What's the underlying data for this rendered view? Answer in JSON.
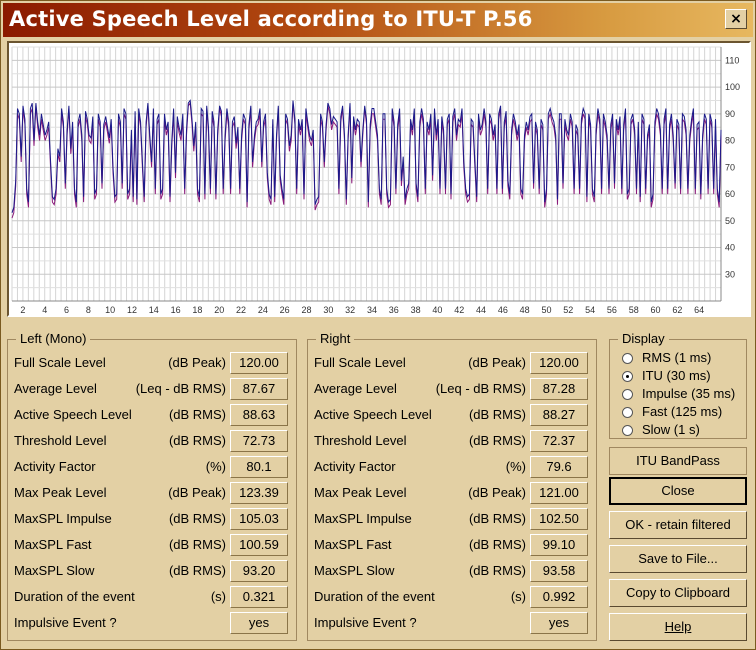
{
  "window": {
    "title": "Active Speech Level according to ITU-T P.56",
    "close_label": "×"
  },
  "chart_data": {
    "type": "line",
    "x_ticks": [
      "2",
      "4",
      "6",
      "8",
      "10",
      "12",
      "14",
      "16",
      "18",
      "20",
      "22",
      "24",
      "26",
      "28",
      "30",
      "32",
      "34",
      "36",
      "38",
      "40",
      "42",
      "44",
      "46",
      "48",
      "50",
      "52",
      "54",
      "56",
      "58",
      "60",
      "62",
      "64"
    ],
    "xlim": [
      1,
      66
    ],
    "y_ticks": [
      "30",
      "40",
      "50",
      "60",
      "70",
      "80",
      "90",
      "100",
      "110"
    ],
    "ylim": [
      20,
      115
    ],
    "grid": true,
    "series": [
      {
        "color": "#8a1a7a",
        "values": [
          51,
          53,
          63,
          90,
          88,
          72,
          92,
          86,
          60,
          55,
          90,
          92,
          78,
          93,
          85,
          80,
          88,
          84,
          80,
          82,
          85,
          70,
          57,
          56,
          60,
          75,
          72,
          90,
          85,
          62,
          82,
          92,
          75,
          85,
          60,
          55,
          85,
          88,
          80,
          57,
          89,
          86,
          80,
          79,
          87,
          58,
          60,
          88,
          85,
          62,
          84,
          87,
          83,
          79,
          86,
          68,
          57,
          58,
          88,
          85,
          62,
          90,
          88,
          58,
          60,
          82,
          57,
          89,
          56,
          90,
          85,
          70,
          57,
          85,
          93,
          80,
          70,
          90,
          60,
          86,
          88,
          58,
          60,
          88,
          82,
          85,
          57,
          78,
          90,
          66,
          87,
          83,
          80,
          88,
          60,
          82,
          93,
          94,
          86,
          76,
          85,
          60,
          57,
          90,
          89,
          58,
          92,
          83,
          60,
          89,
          85,
          58,
          82,
          92,
          89,
          60,
          80,
          90,
          85,
          60,
          85,
          87,
          77,
          83,
          60,
          80,
          88,
          86,
          55,
          84,
          92,
          70,
          80,
          85,
          86,
          90,
          70,
          85,
          88,
          66,
          58,
          56,
          86,
          57,
          80,
          92,
          65,
          60,
          56,
          88,
          86,
          76,
          80,
          94,
          86,
          60,
          86,
          82,
          86,
          58,
          90,
          85,
          80,
          78,
          82,
          54,
          56,
          57,
          88,
          85,
          70,
          84,
          93,
          90,
          84,
          87,
          86,
          85,
          60,
          87,
          92,
          80,
          56,
          80,
          93,
          64,
          87,
          82,
          86,
          85,
          70,
          82,
          92,
          86,
          55,
          84,
          90,
          90,
          85,
          80,
          60,
          56,
          88,
          88,
          60,
          55,
          56,
          90,
          85,
          60,
          84,
          90,
          63,
          72,
          56,
          60,
          62,
          86,
          82,
          90,
          62,
          57,
          85,
          90,
          86,
          60,
          85,
          82,
          88,
          65,
          90,
          80,
          86,
          60,
          87,
          82,
          60,
          86,
          88,
          58,
          87,
          90,
          80,
          86,
          85,
          90,
          70,
          60,
          57,
          58,
          86,
          85,
          70,
          57,
          88,
          82,
          84,
          90,
          85,
          60,
          88,
          86,
          80,
          84,
          60,
          88,
          92,
          60,
          85,
          89,
          63,
          58,
          82,
          88,
          85,
          80,
          84,
          60,
          58,
          80,
          85,
          82,
          87,
          88,
          62,
          85,
          82,
          60,
          86,
          84,
          55,
          60,
          88,
          90,
          87,
          85,
          80,
          56,
          88,
          88,
          62,
          86,
          82,
          80,
          88,
          85,
          60,
          84,
          82,
          60,
          86,
          90,
          88,
          57,
          88,
          84,
          60,
          57,
          82,
          90,
          86,
          60,
          88,
          85,
          80,
          60,
          84,
          88,
          62,
          86,
          82,
          87,
          60,
          84,
          90,
          58,
          60,
          86,
          88,
          82,
          60,
          85,
          57,
          88,
          86,
          60,
          80,
          84,
          55,
          58,
          85,
          90,
          88,
          82,
          60,
          86,
          90,
          60,
          84,
          88,
          80,
          62,
          86,
          84,
          60,
          88,
          87,
          82,
          60,
          80,
          86,
          90,
          60,
          84,
          85,
          58,
          80,
          88,
          86,
          60,
          88,
          85,
          60,
          86,
          60,
          55,
          82
        ]
      },
      {
        "color": "#1a1a8a",
        "values": [
          53,
          55,
          65,
          92,
          90,
          74,
          93,
          88,
          62,
          57,
          92,
          94,
          80,
          94,
          87,
          82,
          90,
          86,
          82,
          84,
          87,
          72,
          59,
          58,
          62,
          77,
          74,
          92,
          87,
          64,
          84,
          93,
          77,
          87,
          62,
          57,
          87,
          90,
          82,
          59,
          91,
          88,
          82,
          81,
          89,
          60,
          62,
          90,
          87,
          64,
          86,
          89,
          85,
          81,
          88,
          70,
          59,
          60,
          90,
          87,
          64,
          92,
          90,
          60,
          62,
          84,
          59,
          91,
          58,
          92,
          87,
          72,
          59,
          87,
          94,
          82,
          72,
          92,
          62,
          88,
          90,
          60,
          62,
          90,
          84,
          87,
          59,
          80,
          92,
          68,
          89,
          85,
          82,
          90,
          62,
          84,
          94,
          95,
          88,
          78,
          87,
          62,
          59,
          92,
          91,
          60,
          93,
          85,
          62,
          91,
          87,
          60,
          84,
          93,
          91,
          62,
          82,
          92,
          87,
          62,
          87,
          89,
          79,
          85,
          62,
          82,
          90,
          88,
          57,
          86,
          93,
          72,
          82,
          87,
          88,
          92,
          72,
          87,
          90,
          68,
          60,
          58,
          88,
          59,
          82,
          93,
          67,
          62,
          58,
          90,
          88,
          78,
          82,
          95,
          88,
          62,
          88,
          84,
          88,
          60,
          92,
          87,
          82,
          80,
          84,
          56,
          58,
          59,
          90,
          87,
          72,
          86,
          94,
          92,
          86,
          89,
          88,
          87,
          62,
          89,
          93,
          82,
          58,
          82,
          94,
          66,
          89,
          84,
          88,
          87,
          72,
          84,
          93,
          88,
          57,
          86,
          92,
          92,
          87,
          82,
          62,
          58,
          90,
          90,
          62,
          57,
          58,
          92,
          87,
          62,
          86,
          92,
          65,
          74,
          58,
          62,
          64,
          88,
          84,
          92,
          64,
          59,
          87,
          92,
          88,
          62,
          87,
          84,
          90,
          67,
          92,
          82,
          88,
          62,
          89,
          84,
          62,
          88,
          90,
          60,
          89,
          92,
          82,
          88,
          87,
          92,
          72,
          62,
          59,
          60,
          88,
          87,
          72,
          59,
          90,
          84,
          86,
          92,
          87,
          62,
          90,
          88,
          82,
          86,
          62,
          90,
          93,
          62,
          87,
          91,
          65,
          60,
          84,
          90,
          87,
          82,
          86,
          62,
          60,
          82,
          87,
          84,
          89,
          90,
          64,
          87,
          84,
          62,
          88,
          86,
          57,
          62,
          90,
          92,
          89,
          87,
          82,
          58,
          90,
          90,
          64,
          88,
          84,
          82,
          90,
          87,
          62,
          86,
          84,
          62,
          88,
          92,
          90,
          59,
          90,
          86,
          62,
          59,
          84,
          92,
          88,
          62,
          90,
          87,
          82,
          62,
          86,
          90,
          64,
          88,
          84,
          89,
          62,
          86,
          92,
          60,
          62,
          88,
          90,
          84,
          62,
          87,
          59,
          90,
          88,
          62,
          82,
          86,
          57,
          60,
          87,
          92,
          90,
          84,
          62,
          88,
          92,
          62,
          86,
          90,
          82,
          64,
          88,
          86,
          62,
          90,
          89,
          84,
          62,
          82,
          88,
          92,
          62,
          86,
          87,
          60,
          82,
          90,
          88,
          62,
          90,
          87,
          62,
          88,
          62,
          57,
          84
        ]
      }
    ]
  },
  "left": {
    "title": "Left (Mono)",
    "rows": [
      {
        "label": "Full Scale Level",
        "unit": "(dB Peak)",
        "value": "120.00"
      },
      {
        "label": "Average Level",
        "unit": "(Leq - dB RMS)",
        "value": "87.67"
      },
      {
        "label": "Active Speech Level",
        "unit": "(dB RMS)",
        "value": "88.63"
      },
      {
        "label": "Threshold Level",
        "unit": "(dB RMS)",
        "value": "72.73"
      },
      {
        "label": "Activity Factor",
        "unit": "(%)",
        "value": "80.1"
      },
      {
        "label": "Max Peak Level",
        "unit": "(dB Peak)",
        "value": "123.39"
      },
      {
        "label": "MaxSPL Impulse",
        "unit": "(dB RMS)",
        "value": "105.03"
      },
      {
        "label": "MaxSPL Fast",
        "unit": "(dB RMS)",
        "value": "100.59"
      },
      {
        "label": "MaxSPL Slow",
        "unit": "(dB RMS)",
        "value": "93.20"
      },
      {
        "label": "Duration of the event",
        "unit": "(s)",
        "value": "0.321"
      },
      {
        "label": "Impulsive Event ?",
        "unit": "",
        "value": "yes"
      }
    ]
  },
  "right": {
    "title": "Right",
    "rows": [
      {
        "label": "Full Scale Level",
        "unit": "(dB Peak)",
        "value": "120.00"
      },
      {
        "label": "Average Level",
        "unit": "(Leq - dB RMS)",
        "value": "87.28"
      },
      {
        "label": "Active Speech Level",
        "unit": "(dB RMS)",
        "value": "88.27"
      },
      {
        "label": "Threshold Level",
        "unit": "(dB RMS)",
        "value": "72.37"
      },
      {
        "label": "Activity Factor",
        "unit": "(%)",
        "value": "79.6"
      },
      {
        "label": "Max Peak Level",
        "unit": "(dB Peak)",
        "value": "121.00"
      },
      {
        "label": "MaxSPL Impulse",
        "unit": "(dB RMS)",
        "value": "102.50"
      },
      {
        "label": "MaxSPL Fast",
        "unit": "(dB RMS)",
        "value": "99.10"
      },
      {
        "label": "MaxSPL Slow",
        "unit": "(dB RMS)",
        "value": "93.58"
      },
      {
        "label": "Duration of the event",
        "unit": "(s)",
        "value": "0.992"
      },
      {
        "label": "Impulsive Event ?",
        "unit": "",
        "value": "yes"
      }
    ]
  },
  "display": {
    "title": "Display",
    "options": [
      {
        "label": "RMS  (1 ms)",
        "selected": false
      },
      {
        "label": "ITU   (30 ms)",
        "selected": true
      },
      {
        "label": "Impulse (35 ms)",
        "selected": false
      },
      {
        "label": "Fast   (125 ms)",
        "selected": false
      },
      {
        "label": "Slow  (1 s)",
        "selected": false
      }
    ]
  },
  "buttons": {
    "itu_bandpass": "ITU BandPass",
    "close": "Close",
    "ok_retain": "OK - retain filtered",
    "save_file": "Save to File...",
    "copy_clipboard": "Copy to Clipboard",
    "help": "Help"
  }
}
